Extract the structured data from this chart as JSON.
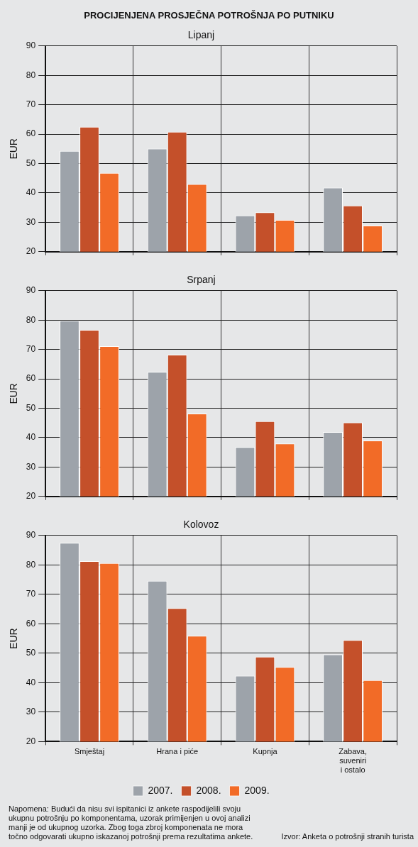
{
  "chart_data": [
    {
      "type": "bar",
      "title": "PROCIJENJENA PROSJEČNA POTROŠNJA PO PUTNIKU",
      "subtitle": "Lipanj",
      "ylabel": "EUR",
      "categories": [
        null,
        null,
        null,
        null
      ],
      "series": [
        {
          "color": "#9da3aa",
          "values": [
            54.3,
            55.1,
            32.3,
            41.8
          ]
        },
        {
          "color": "#c4502a",
          "values": [
            62.5,
            60.8,
            33.4,
            35.7
          ]
        },
        {
          "color": "#f26b27",
          "values": [
            46.8,
            43.0,
            30.8,
            28.9
          ]
        }
      ],
      "ylim": [
        20,
        90
      ],
      "yticks": [
        20,
        30,
        40,
        50,
        60,
        70,
        80,
        90
      ],
      "grid": true,
      "legend": false
    },
    {
      "type": "bar",
      "title": "Srpanj",
      "ylabel": "EUR",
      "categories": [
        null,
        null,
        null,
        null
      ],
      "series": [
        {
          "color": "#9da3aa",
          "values": [
            79.8,
            62.4,
            36.8,
            41.9
          ]
        },
        {
          "color": "#c4502a",
          "values": [
            76.7,
            68.2,
            45.6,
            45.2
          ]
        },
        {
          "color": "#f26b27",
          "values": [
            71.1,
            48.2,
            38.0,
            39.0
          ]
        }
      ],
      "ylim": [
        20,
        90
      ],
      "yticks": [
        20,
        30,
        40,
        50,
        60,
        70,
        80,
        90
      ],
      "grid": true,
      "legend": false
    },
    {
      "type": "bar",
      "title": "Kolovoz",
      "ylabel": "EUR",
      "categories": [
        "Smještaj",
        "Hrana i piće",
        "Kupnja",
        "Zabava, suveniri i ostalo"
      ],
      "series": [
        {
          "name": "2007.",
          "color": "#9da3aa",
          "values": [
            87.5,
            74.6,
            42.4,
            49.6
          ]
        },
        {
          "name": "2008.",
          "color": "#c4502a",
          "values": [
            81.3,
            65.3,
            48.8,
            54.5
          ]
        },
        {
          "name": "2009.",
          "color": "#f26b27",
          "values": [
            80.6,
            55.9,
            45.3,
            40.9
          ]
        }
      ],
      "ylim": [
        20,
        90
      ],
      "yticks": [
        20,
        30,
        40,
        50,
        60,
        70,
        80,
        90
      ],
      "grid": true,
      "legend": "bottom",
      "annotations": [
        "Napomena: Budući da nisu svi ispitanici iz ankete raspodijelili svoju ukupnu potrošnju po komponentama, uzorak primijenjen u ovoj analizi manji je od ukupnog uzorka. Zbog toga zbroj komponenata ne mora točno odgovarati ukupno iskazanoj potrošnji prema rezultatima ankete.",
        "Izvor: Anketa o potrošnji stranih turista"
      ]
    }
  ]
}
